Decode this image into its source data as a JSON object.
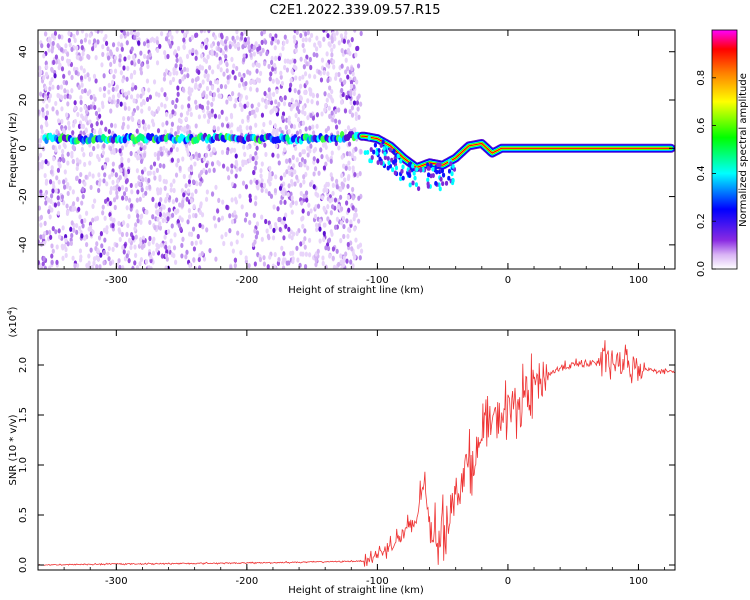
{
  "figure": {
    "title": "C2E1.2022.339.09.57.R15"
  },
  "chart_data": [
    {
      "type": "heatmap",
      "xlabel": "Height of straight line (km)",
      "ylabel": "Frequency (Hz)",
      "xlim": [
        -360,
        128
      ],
      "ylim": [
        -50,
        49
      ],
      "x_ticks": [
        -300,
        -200,
        -100,
        0,
        100
      ],
      "y_ticks": [
        -40,
        -20,
        0,
        20,
        40
      ],
      "colorbar": {
        "label": "Normalized spectral amplitude",
        "range": [
          0.0,
          1.0
        ],
        "ticks": [
          0.0,
          0.2,
          0.4,
          0.6,
          0.8
        ],
        "colors": [
          "#ffffff",
          "#8a2be2",
          "#0000ff",
          "#00ffff",
          "#00ff00",
          "#ffff00",
          "#ff8000",
          "#ff0000",
          "#ff00ff"
        ]
      },
      "ridge": {
        "x": [
          -355,
          -300,
          -250,
          -200,
          -150,
          -120,
          -110,
          -100,
          -90,
          -80,
          -70,
          -60,
          -50,
          -40,
          -30,
          -20,
          -12,
          -5,
          0,
          40,
          80,
          125
        ],
        "y": [
          4,
          4,
          4,
          4,
          4,
          5,
          5,
          4,
          1,
          -4,
          -8,
          -6,
          -7,
          -4,
          1,
          2,
          -2,
          0,
          0,
          0,
          0,
          0
        ]
      },
      "noise_extent_x": [
        -360,
        -112
      ]
    },
    {
      "type": "line",
      "xlabel": "Height of straight line (km)",
      "ylabel": "SNR (10 * v/v)",
      "y_multiplier": "(x10^4)",
      "y_multiplier_base": "(x10",
      "y_multiplier_exp": "4",
      "y_multiplier_close": ")",
      "xlim": [
        -360,
        128
      ],
      "ylim": [
        -0.05,
        2.35
      ],
      "x_ticks": [
        -300,
        -200,
        -100,
        0,
        100
      ],
      "y_ticks": [
        0.0,
        0.5,
        1.0,
        1.5,
        2.0
      ],
      "y_tick_labels": [
        "0.0",
        "0.5",
        "1.0",
        "1.5",
        "2.0"
      ],
      "color": "#ee3333",
      "series": [
        {
          "x": [
            -360,
            -300,
            -200,
            -150,
            -110,
            -100,
            -90,
            -80,
            -70,
            -65,
            -60,
            -55,
            -50,
            -45,
            -40,
            -35,
            -30,
            -25,
            -20,
            -15,
            -10,
            -5,
            0,
            10,
            20,
            30,
            40,
            50,
            60,
            70,
            80,
            90,
            100,
            110,
            128
          ],
          "y": [
            0.0,
            0.01,
            0.02,
            0.03,
            0.04,
            0.1,
            0.2,
            0.3,
            0.45,
            0.85,
            0.4,
            0.3,
            0.35,
            0.5,
            0.7,
            0.9,
            1.0,
            1.1,
            1.25,
            1.4,
            1.45,
            1.5,
            1.55,
            1.65,
            1.8,
            1.9,
            1.97,
            2.0,
            2.02,
            2.03,
            2.03,
            2.0,
            1.98,
            1.95,
            1.93
          ]
        }
      ]
    }
  ]
}
